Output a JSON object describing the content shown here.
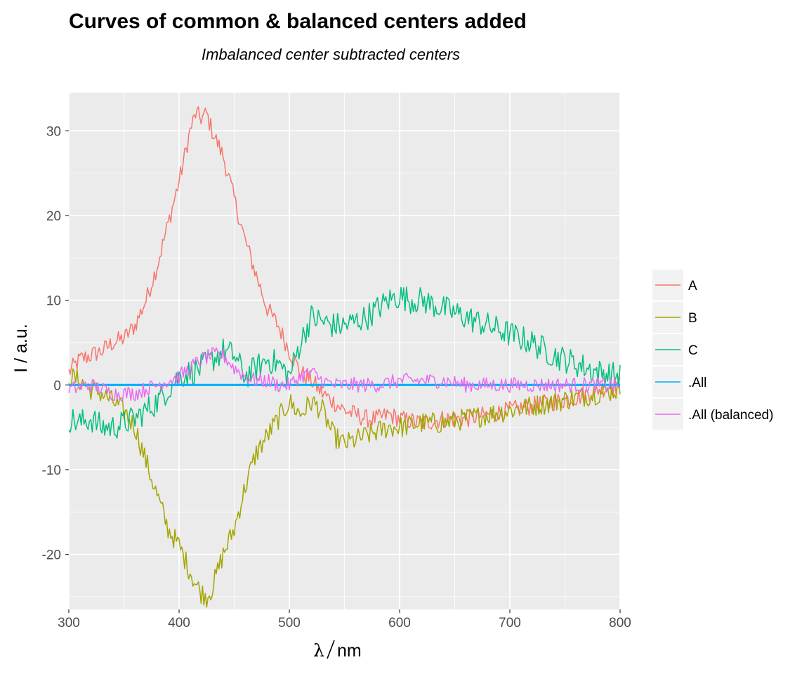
{
  "chart_data": {
    "type": "line",
    "title": "Curves of common & balanced centers added",
    "subtitle": "Imbalanced center subtracted centers",
    "xlabel_symbol": "λ",
    "xlabel_unit": "nm",
    "ylabel": "I / a.u.",
    "xlim": [
      300,
      800
    ],
    "ylim": [
      -26.5,
      34.5
    ],
    "x_ticks": [
      300,
      400,
      500,
      600,
      700,
      800
    ],
    "y_ticks": [
      -20,
      -10,
      0,
      10,
      20,
      30
    ],
    "x_tick_labels": [
      "300",
      "400",
      "500",
      "600",
      "700",
      "800"
    ],
    "y_tick_labels": [
      "-20",
      "-10",
      "0",
      "10",
      "20",
      "30"
    ],
    "grid": true,
    "legend_position": "right",
    "panel_background": "#ebebeb",
    "series": [
      {
        "name": "A",
        "color": "#F8766D",
        "x": [
          300,
          310,
          320,
          330,
          340,
          350,
          360,
          370,
          380,
          390,
          400,
          410,
          415,
          420,
          425,
          430,
          440,
          450,
          460,
          470,
          480,
          490,
          500,
          510,
          520,
          530,
          540,
          550,
          560,
          570,
          580,
          590,
          600,
          620,
          640,
          660,
          680,
          700,
          720,
          740,
          760,
          780,
          800
        ],
        "values": [
          1.5,
          3,
          3.5,
          4,
          5,
          5.5,
          7,
          10,
          14,
          19,
          24,
          30,
          32,
          31.5,
          32,
          30,
          27,
          22,
          17,
          13,
          9,
          7,
          4,
          1.5,
          0.5,
          -1,
          -2,
          -3,
          -3.5,
          -4,
          -4,
          -3.5,
          -4,
          -4.5,
          -4,
          -4,
          -3.5,
          -3,
          -2.5,
          -2,
          -1.5,
          -0.5,
          0
        ]
      },
      {
        "name": "B",
        "color": "#A3A500",
        "x": [
          300,
          310,
          320,
          330,
          340,
          350,
          360,
          370,
          380,
          390,
          400,
          410,
          415,
          420,
          425,
          430,
          440,
          450,
          460,
          470,
          480,
          490,
          500,
          510,
          520,
          530,
          540,
          550,
          560,
          570,
          580,
          590,
          600,
          620,
          640,
          660,
          680,
          700,
          720,
          740,
          760,
          780,
          800
        ],
        "values": [
          1,
          0.5,
          -0.5,
          -1,
          -2,
          -3,
          -5,
          -9,
          -13,
          -17,
          -19,
          -22,
          -23.5,
          -24.5,
          -25,
          -24,
          -20,
          -17,
          -12,
          -8,
          -6,
          -4,
          -2,
          -3.5,
          -2,
          -3,
          -6,
          -7,
          -6.5,
          -6,
          -5.5,
          -5,
          -5,
          -4.5,
          -4.5,
          -4,
          -3.5,
          -3,
          -2.5,
          -2,
          -1.5,
          -1,
          -0.5
        ]
      },
      {
        "name": "C",
        "color": "#00BF7D",
        "x": [
          300,
          310,
          320,
          330,
          340,
          350,
          360,
          370,
          380,
          390,
          400,
          410,
          420,
          430,
          440,
          450,
          460,
          470,
          480,
          490,
          500,
          510,
          520,
          530,
          540,
          550,
          560,
          570,
          580,
          590,
          600,
          610,
          620,
          630,
          640,
          650,
          660,
          680,
          700,
          720,
          740,
          760,
          780,
          800
        ],
        "values": [
          -4,
          -4.5,
          -4,
          -5,
          -5,
          -4.5,
          -4,
          -3,
          -2,
          -0.5,
          1,
          1.5,
          2,
          3,
          4,
          3.5,
          1,
          2,
          3,
          2.5,
          1,
          5,
          8,
          7.5,
          7,
          7,
          7.5,
          8,
          9,
          10,
          10.5,
          10,
          10,
          9.5,
          9,
          8.5,
          8,
          7,
          6,
          5,
          3.5,
          2.5,
          1.5,
          1
        ]
      },
      {
        "name": ".All",
        "color": "#00B0F6",
        "x": [
          300,
          800
        ],
        "values": [
          0,
          0
        ]
      },
      {
        "name": ".All (balanced)",
        "color": "#E76BF3",
        "x": [
          300,
          320,
          340,
          360,
          380,
          400,
          410,
          420,
          430,
          440,
          450,
          460,
          470,
          480,
          490,
          500,
          510,
          520,
          530,
          540,
          560,
          580,
          600,
          620,
          640,
          660,
          680,
          700,
          720,
          740,
          760,
          780,
          800
        ],
        "values": [
          -0.5,
          0,
          -1,
          -1,
          0,
          1,
          2,
          3,
          3.5,
          3.5,
          2,
          1,
          0.5,
          0.5,
          0,
          0,
          1,
          1.5,
          0.5,
          0,
          0,
          0,
          0.5,
          0.5,
          0.5,
          0,
          0,
          0,
          0,
          0,
          0,
          0,
          0
        ]
      }
    ]
  }
}
